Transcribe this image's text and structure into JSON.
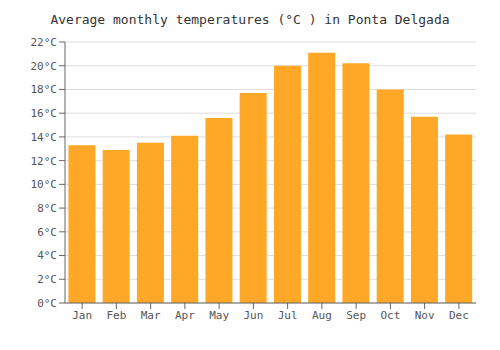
{
  "chart_data": {
    "type": "bar",
    "title": "Average monthly temperatures (°C ) in Ponta Delgada",
    "categories": [
      "Jan",
      "Feb",
      "Mar",
      "Apr",
      "May",
      "Jun",
      "Jul",
      "Aug",
      "Sep",
      "Oct",
      "Nov",
      "Dec"
    ],
    "values": [
      13.3,
      12.9,
      13.5,
      14.1,
      15.6,
      17.7,
      20.0,
      21.1,
      20.2,
      18.0,
      15.7,
      14.2
    ],
    "color": "#FFA726",
    "ylim": [
      0,
      22
    ],
    "yticks": [
      {
        "value": 0,
        "label": "0°C"
      },
      {
        "value": 2,
        "label": "2°C"
      },
      {
        "value": 4,
        "label": "4°C"
      },
      {
        "value": 6,
        "label": "6°C"
      },
      {
        "value": 8,
        "label": "8°C"
      },
      {
        "value": 10,
        "label": "10°C"
      },
      {
        "value": 12,
        "label": "12°C"
      },
      {
        "value": 14,
        "label": "14°C"
      },
      {
        "value": 16,
        "label": "16°C"
      },
      {
        "value": 18,
        "label": "18°C"
      },
      {
        "value": 20,
        "label": "20°C"
      },
      {
        "value": 22,
        "label": "22°C"
      }
    ],
    "grid": true
  }
}
